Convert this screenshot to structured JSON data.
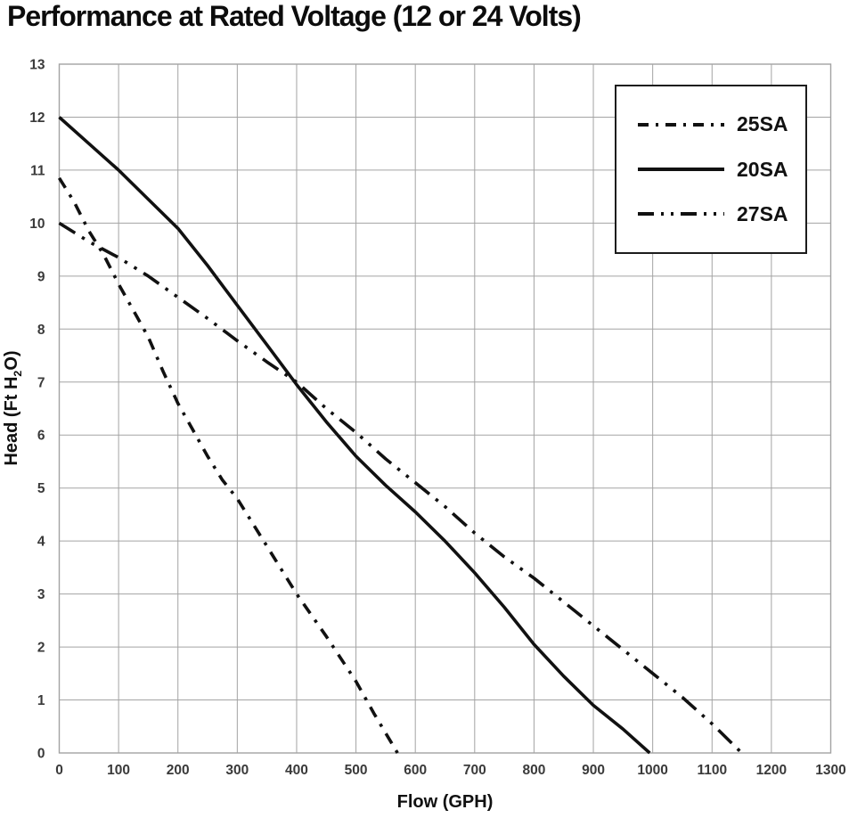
{
  "chart_data": {
    "type": "line",
    "title": "Performance at Rated Voltage (12 or 24 Volts)",
    "xlabel": "Flow (GPH)",
    "ylabel": "Head (Ft H2O)",
    "ylabel_parts": {
      "pre": "Head (Ft H",
      "sub": "2",
      "post": "O)"
    },
    "xlim": [
      0,
      1300
    ],
    "ylim": [
      0,
      13
    ],
    "x_ticks": [
      0,
      100,
      200,
      300,
      400,
      500,
      600,
      700,
      800,
      900,
      1000,
      1100,
      1200,
      1300
    ],
    "y_ticks": [
      0,
      1,
      2,
      3,
      4,
      5,
      6,
      7,
      8,
      9,
      10,
      11,
      12,
      13
    ],
    "grid": true,
    "legend_position": "upper right",
    "colors": {
      "line": "#111111",
      "grid": "#a3a3a3",
      "tick_text": "#3a3a3a"
    },
    "series": [
      {
        "name": "25SA",
        "style": "dash-dot",
        "points": [
          [
            0,
            10.85
          ],
          [
            25,
            10.4
          ],
          [
            50,
            9.85
          ],
          [
            75,
            9.4
          ],
          [
            100,
            8.85
          ],
          [
            125,
            8.35
          ],
          [
            150,
            7.85
          ],
          [
            175,
            7.2
          ],
          [
            200,
            6.6
          ],
          [
            225,
            6.1
          ],
          [
            250,
            5.6
          ],
          [
            275,
            5.15
          ],
          [
            300,
            4.8
          ],
          [
            350,
            3.9
          ],
          [
            400,
            3.0
          ],
          [
            450,
            2.2
          ],
          [
            500,
            1.35
          ],
          [
            530,
            0.75
          ],
          [
            570,
            0
          ]
        ]
      },
      {
        "name": "20SA",
        "style": "solid",
        "points": [
          [
            0,
            12
          ],
          [
            50,
            11.5
          ],
          [
            100,
            11
          ],
          [
            150,
            10.45
          ],
          [
            200,
            9.9
          ],
          [
            250,
            9.2
          ],
          [
            300,
            8.45
          ],
          [
            350,
            7.7
          ],
          [
            400,
            6.95
          ],
          [
            450,
            6.25
          ],
          [
            500,
            5.6
          ],
          [
            550,
            5.05
          ],
          [
            600,
            4.55
          ],
          [
            650,
            4.0
          ],
          [
            700,
            3.4
          ],
          [
            750,
            2.75
          ],
          [
            800,
            2.05
          ],
          [
            850,
            1.45
          ],
          [
            900,
            0.9
          ],
          [
            950,
            0.45
          ],
          [
            995,
            0
          ]
        ]
      },
      {
        "name": "27SA",
        "style": "dash-dot-dot",
        "points": [
          [
            0,
            10
          ],
          [
            50,
            9.65
          ],
          [
            100,
            9.35
          ],
          [
            150,
            9.0
          ],
          [
            200,
            8.6
          ],
          [
            250,
            8.2
          ],
          [
            300,
            7.78
          ],
          [
            350,
            7.38
          ],
          [
            400,
            7.0
          ],
          [
            450,
            6.5
          ],
          [
            500,
            6.05
          ],
          [
            550,
            5.55
          ],
          [
            600,
            5.1
          ],
          [
            650,
            4.65
          ],
          [
            700,
            4.15
          ],
          [
            750,
            3.7
          ],
          [
            800,
            3.3
          ],
          [
            850,
            2.85
          ],
          [
            900,
            2.4
          ],
          [
            950,
            1.95
          ],
          [
            1000,
            1.5
          ],
          [
            1050,
            1.05
          ],
          [
            1100,
            0.55
          ],
          [
            1150,
            0
          ]
        ]
      }
    ]
  }
}
